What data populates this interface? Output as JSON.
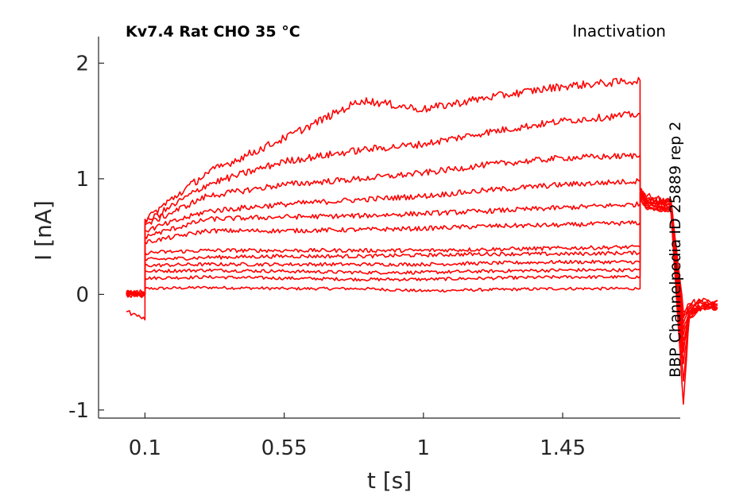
{
  "chart_data": {
    "type": "line",
    "title": "Kv7.4  Rat  CHO  35 °C",
    "protocol": "Inactivation",
    "side_note": "BBP Channelpedia ID 25889 rep 2",
    "xlabel": "t [s]",
    "ylabel": "I [nA]",
    "xlim": [
      -0.05,
      1.83
    ],
    "ylim": [
      -1.07,
      2.23
    ],
    "x_ticks": [
      0.1,
      0.55,
      1,
      1.45
    ],
    "x_tick_labels": [
      "0.1",
      "0.55",
      "1",
      "1.45"
    ],
    "y_ticks": [
      -1,
      0,
      1,
      2
    ],
    "y_tick_labels": [
      "-1",
      "0",
      "1",
      "2"
    ],
    "grid": false,
    "box": false,
    "series_color": "#ff0000",
    "x": [
      0.04,
      0.06,
      0.08,
      0.1,
      0.1,
      0.3,
      0.55,
      0.8,
      1.0,
      1.2,
      1.45,
      1.7,
      1.7,
      1.72,
      1.8,
      1.84,
      1.86,
      1.9,
      1.95
    ],
    "series": [
      {
        "values": [
          0.0,
          0.0,
          0.01,
          0.0,
          0.05,
          0.06,
          0.05,
          0.05,
          0.03,
          0.04,
          0.05,
          0.05,
          0.85,
          0.75,
          0.71,
          -0.95,
          -0.15,
          -0.1,
          -0.12
        ]
      },
      {
        "values": [
          0.02,
          0.01,
          0.0,
          0.0,
          0.14,
          0.15,
          0.14,
          0.13,
          0.13,
          0.14,
          0.15,
          0.15,
          0.82,
          0.74,
          0.72,
          -0.75,
          -0.18,
          -0.1,
          -0.12
        ]
      },
      {
        "values": [
          0.03,
          0.02,
          0.01,
          0.01,
          0.2,
          0.21,
          0.2,
          0.19,
          0.19,
          0.2,
          0.21,
          0.21,
          0.83,
          0.75,
          0.74,
          -0.6,
          -0.2,
          -0.12,
          -0.12
        ]
      },
      {
        "values": [
          0.01,
          0.0,
          0.01,
          0.0,
          0.25,
          0.26,
          0.26,
          0.26,
          0.26,
          0.27,
          0.28,
          0.28,
          0.85,
          0.77,
          0.74,
          -0.5,
          -0.15,
          -0.1,
          -0.12
        ]
      },
      {
        "values": [
          0.0,
          0.01,
          0.0,
          0.01,
          0.3,
          0.32,
          0.33,
          0.33,
          0.34,
          0.35,
          0.35,
          0.36,
          0.86,
          0.78,
          0.75,
          -0.45,
          -0.18,
          -0.1,
          -0.11
        ]
      },
      {
        "values": [
          0.02,
          0.01,
          0.01,
          0.0,
          0.36,
          0.38,
          0.38,
          0.38,
          0.38,
          0.39,
          0.4,
          0.41,
          0.87,
          0.79,
          0.76,
          -0.4,
          -0.2,
          -0.12,
          -0.12
        ]
      },
      {
        "values": [
          -0.15,
          -0.17,
          -0.18,
          -0.22,
          0.45,
          0.55,
          0.55,
          0.56,
          0.57,
          0.59,
          0.6,
          0.62,
          0.88,
          0.8,
          0.77,
          -0.35,
          -0.15,
          -0.1,
          -0.1
        ]
      },
      {
        "values": [
          0.0,
          0.01,
          0.0,
          0.0,
          0.5,
          0.65,
          0.67,
          0.68,
          0.7,
          0.72,
          0.75,
          0.78,
          0.89,
          0.81,
          0.78,
          -0.3,
          -0.15,
          -0.1,
          -0.1
        ]
      },
      {
        "values": [
          0.01,
          0.0,
          0.01,
          0.0,
          0.55,
          0.72,
          0.78,
          0.82,
          0.85,
          0.9,
          0.95,
          0.98,
          0.9,
          0.82,
          0.79,
          -0.25,
          -0.12,
          -0.08,
          -0.08
        ]
      },
      {
        "values": [
          0.0,
          0.01,
          0.0,
          0.0,
          0.6,
          0.85,
          0.95,
          1.0,
          1.05,
          1.12,
          1.18,
          1.2,
          0.91,
          0.83,
          0.8,
          -0.2,
          -0.12,
          -0.08,
          -0.08
        ]
      },
      {
        "values": [
          0.01,
          0.0,
          0.0,
          0.0,
          0.62,
          0.95,
          1.15,
          1.25,
          1.3,
          1.4,
          1.5,
          1.56,
          0.9,
          0.82,
          0.8,
          -0.2,
          -0.1,
          -0.06,
          -0.06
        ]
      },
      {
        "values": [
          0.0,
          0.0,
          0.01,
          0.0,
          0.65,
          1.05,
          1.35,
          1.68,
          1.6,
          1.7,
          1.8,
          1.85,
          0.92,
          0.84,
          0.82,
          -0.15,
          -0.08,
          -0.05,
          -0.05
        ]
      }
    ]
  }
}
